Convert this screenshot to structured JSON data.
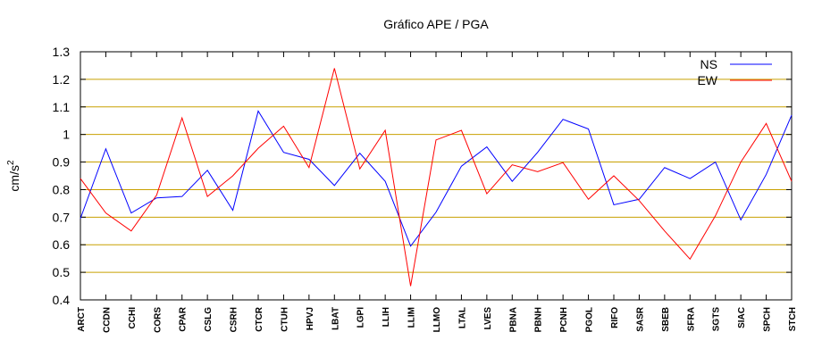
{
  "chart_data": {
    "type": "line",
    "title": "Gráfico  APE / PGA",
    "ylabel_main": "cm/s",
    "ylabel_sup": "2",
    "xlabel": "",
    "ylim": [
      0.4,
      1.3
    ],
    "yticks": [
      "0.4",
      "0.5",
      "0.6",
      "0.7",
      "0.8",
      "0.9",
      "1",
      "1.1",
      "1.2",
      "1.3"
    ],
    "grid": true,
    "legend_position": "top-right",
    "categories": [
      "ARCT",
      "CCDN",
      "CCHI",
      "CORS",
      "CPAR",
      "CSLG",
      "CSRH",
      "CTCR",
      "CTUH",
      "HPVJ",
      "LBAT",
      "LGPI",
      "LLIH",
      "LLIM",
      "LLMO",
      "LTAL",
      "LVES",
      "PBNA",
      "PBNH",
      "PCNH",
      "PGOL",
      "RIFO",
      "SASR",
      "SBEB",
      "SFRA",
      "SGTS",
      "SIAC",
      "SPCH",
      "STCH"
    ],
    "series": [
      {
        "name": "NS",
        "color": "#0000ff",
        "values": [
          0.695,
          0.948,
          0.715,
          0.77,
          0.775,
          0.87,
          0.725,
          1.085,
          0.935,
          0.91,
          0.815,
          0.932,
          0.83,
          0.595,
          0.718,
          0.885,
          0.955,
          0.83,
          0.935,
          1.055,
          1.02,
          0.745,
          0.765,
          0.88,
          0.84,
          0.9,
          0.69,
          0.855,
          1.07
        ]
      },
      {
        "name": "EW",
        "color": "#ff0000",
        "values": [
          0.84,
          0.715,
          0.65,
          0.78,
          1.06,
          0.775,
          0.85,
          0.95,
          1.03,
          0.88,
          1.24,
          0.875,
          1.015,
          0.45,
          0.98,
          1.015,
          0.785,
          0.89,
          0.865,
          0.898,
          0.765,
          0.85,
          0.76,
          0.65,
          0.548,
          0.705,
          0.9,
          1.04,
          0.83
        ]
      }
    ]
  }
}
